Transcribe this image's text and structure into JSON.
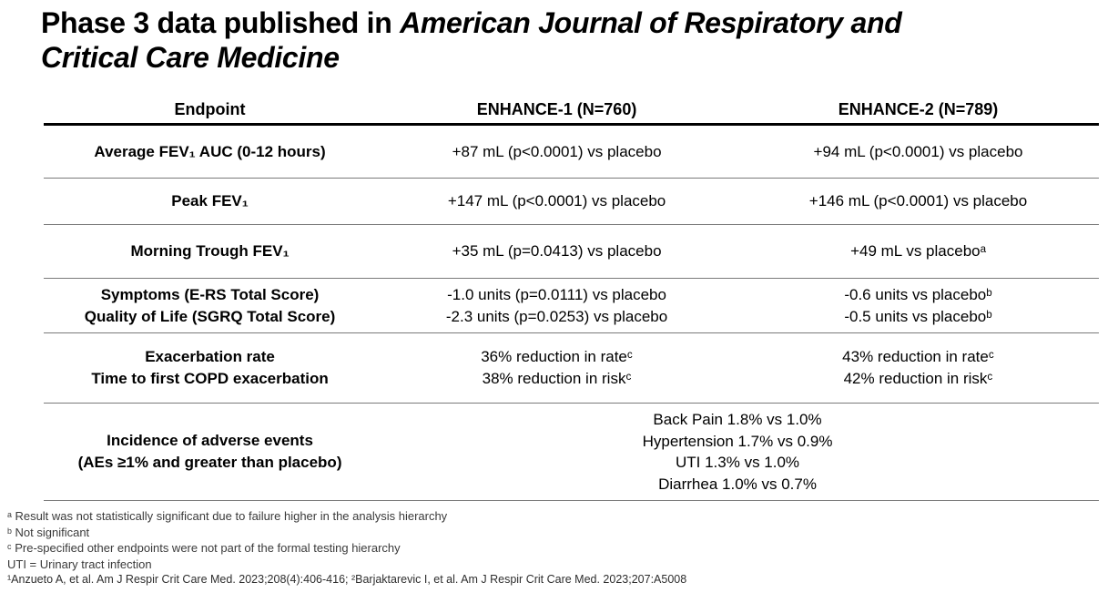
{
  "title": {
    "line1_regular": "Phase 3 data published in ",
    "line1_italic": "American Journal of Respiratory and",
    "line2_italic": "Critical Care Medicine"
  },
  "table": {
    "header": {
      "endpoint": "Endpoint",
      "enhance1": "ENHANCE-1 (N=760)",
      "enhance2": "ENHANCE-2 (N=789)"
    },
    "rows": [
      {
        "endpoint": [
          "Average FEV₁ AUC (0-12 hours)"
        ],
        "enhance1": [
          "+87 mL (p<0.0001) vs placebo"
        ],
        "enhance2": [
          "+94 mL (p<0.0001) vs placebo"
        ]
      },
      {
        "endpoint": [
          "Peak FEV₁"
        ],
        "enhance1": [
          "+147 mL (p<0.0001) vs placebo"
        ],
        "enhance2": [
          "+146 mL (p<0.0001) vs placebo"
        ]
      },
      {
        "endpoint": [
          "Morning Trough FEV₁"
        ],
        "enhance1": [
          "+35 mL (p=0.0413) vs placebo"
        ],
        "enhance2": [
          "+49 mL vs placeboᵃ"
        ]
      },
      {
        "endpoint": [
          "Symptoms (E-RS Total Score)",
          "Quality of Life (SGRQ Total Score)"
        ],
        "enhance1": [
          "-1.0 units (p=0.0111) vs placebo",
          "-2.3 units (p=0.0253) vs placebo"
        ],
        "enhance2": [
          "-0.6 units vs placeboᵇ",
          "-0.5 units vs placeboᵇ"
        ]
      },
      {
        "endpoint": [
          "Exacerbation rate",
          "Time to first COPD exacerbation"
        ],
        "enhance1": [
          "36% reduction in rateᶜ",
          "38% reduction in riskᶜ"
        ],
        "enhance2": [
          "43% reduction in rateᶜ",
          "42% reduction in riskᶜ"
        ]
      },
      {
        "endpoint": [
          "Incidence of adverse events",
          "(AEs ≥1% and greater than placebo)"
        ],
        "merged": [
          "Back Pain 1.8% vs 1.0%",
          "Hypertension 1.7% vs 0.9%",
          "UTI 1.3% vs 1.0%",
          "Diarrhea 1.0% vs 0.7%"
        ]
      }
    ]
  },
  "footnotes": {
    "a": "ᵃ Result was not statistically significant due to failure higher in the analysis hierarchy",
    "b": "ᵇ Not significant",
    "c": "ᶜ Pre-specified other endpoints were not part of the formal testing hierarchy",
    "uti": "UTI = Urinary tract infection",
    "citations": "¹Anzueto A, et al. Am J  Respir Crit Care Med. 2023;208(4):406-416; ²Barjaktarevic I, et al. Am J Respir Crit Care Med. 2023;207:A5008"
  },
  "colors": {
    "rule_thick": "#000000",
    "rule_thin": "#7a7a7a",
    "text": "#000000"
  }
}
